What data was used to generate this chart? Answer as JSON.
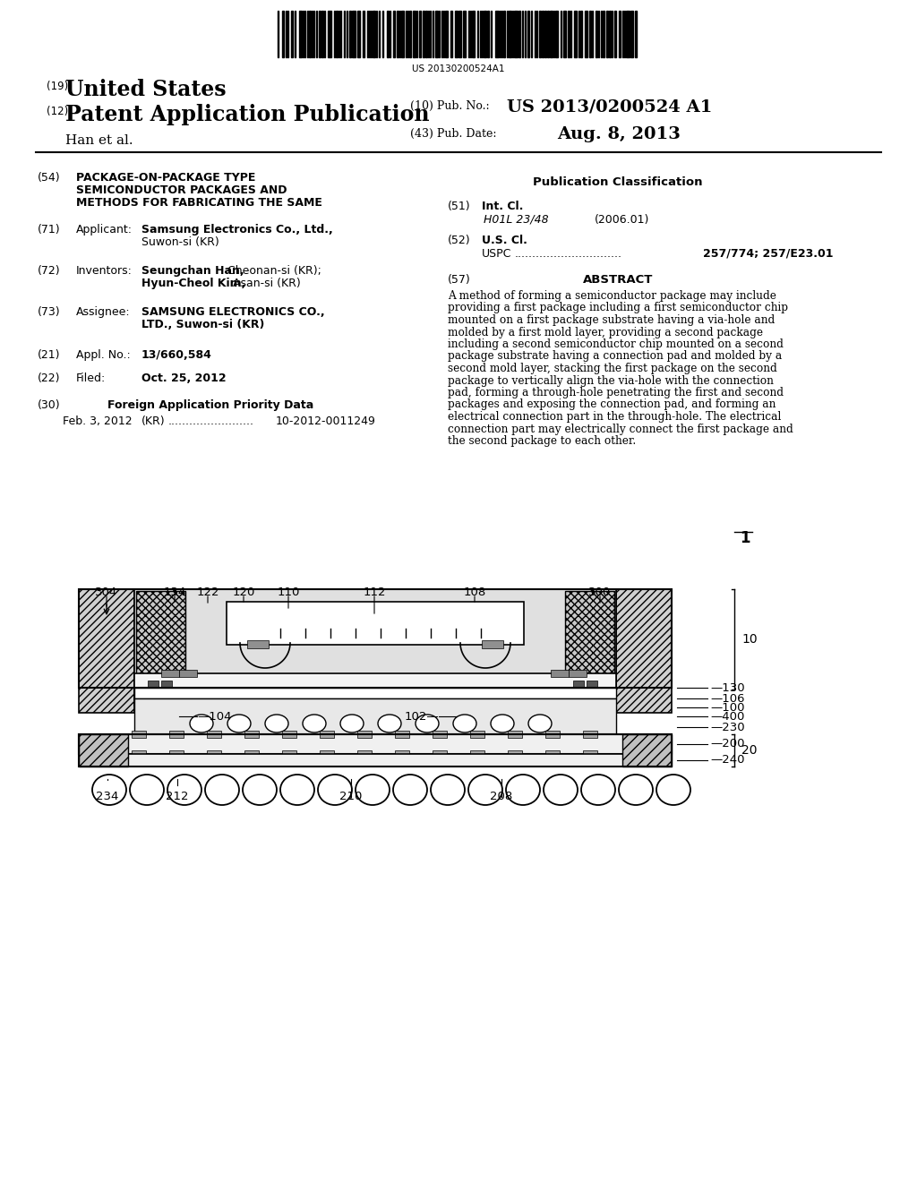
{
  "bg_color": "#ffffff",
  "barcode_text": "US 20130200524A1",
  "title19": "(19)",
  "united_states": "United States",
  "title12": "(12)",
  "patent_app": "Patent Application Publication",
  "title10": "(10) Pub. No.:",
  "pub_no": "US 2013/0200524 A1",
  "author": "Han et al.",
  "title43": "(43) Pub. Date:",
  "pub_date": "Aug. 8, 2013",
  "sec54_num": "(54)",
  "sec54_line1": "PACKAGE-ON-PACKAGE TYPE",
  "sec54_line2": "SEMICONDUCTOR PACKAGES AND",
  "sec54_line3": "METHODS FOR FABRICATING THE SAME",
  "pub_class_title": "Publication Classification",
  "sec51": "(51)",
  "int_cl": "Int. Cl.",
  "int_cl_val": "H01L 23/48",
  "int_cl_year": "(2006.01)",
  "sec52": "(52)",
  "us_cl": "U.S. Cl.",
  "uspc_label": "USPC",
  "uspc_val": "257/774; 257/E23.01",
  "sec71": "(71)",
  "applicant_label": "Applicant:",
  "applicant_name": "Samsung Electronics Co., Ltd.,",
  "applicant_loc": "Suwon-si (KR)",
  "sec57": "(57)",
  "abstract_title": "ABSTRACT",
  "abstract_lines": [
    "A method of forming a semiconductor package may include",
    "providing a first package including a first semiconductor chip",
    "mounted on a first package substrate having a via-hole and",
    "molded by a first mold layer, providing a second package",
    "including a second semiconductor chip mounted on a second",
    "package substrate having a connection pad and molded by a",
    "second mold layer, stacking the first package on the second",
    "package to vertically align the via-hole with the connection",
    "pad, forming a through-hole penetrating the first and second",
    "packages and exposing the connection pad, and forming an",
    "electrical connection part in the through-hole. The electrical",
    "connection part may electrically connect the first package and",
    "the second package to each other."
  ],
  "sec72": "(72)",
  "inventors_label": "Inventors:",
  "inventor1_bold": "Seungchan Han,",
  "inventor1_plain": " Cheonan-si (KR);",
  "inventor2_bold": "Hyun-Cheol Kim,",
  "inventor2_plain": " Asan-si (KR)",
  "sec73": "(73)",
  "assignee_label": "Assignee:",
  "assignee_line1": "SAMSUNG ELECTRONICS CO.,",
  "assignee_line2": "LTD.,",
  "assignee_loc": " Suwon-si (KR)",
  "sec21": "(21)",
  "appl_no_label": "Appl. No.:",
  "appl_no": "13/660,584",
  "sec22": "(22)",
  "filed_label": "Filed:",
  "filed_date": "Oct. 25, 2012",
  "sec30": "(30)",
  "foreign_label": "Foreign Application Priority Data",
  "foreign_date": "Feb. 3, 2012",
  "foreign_country": "(KR)",
  "foreign_no": "10-2012-0011249",
  "fig_number": "1"
}
